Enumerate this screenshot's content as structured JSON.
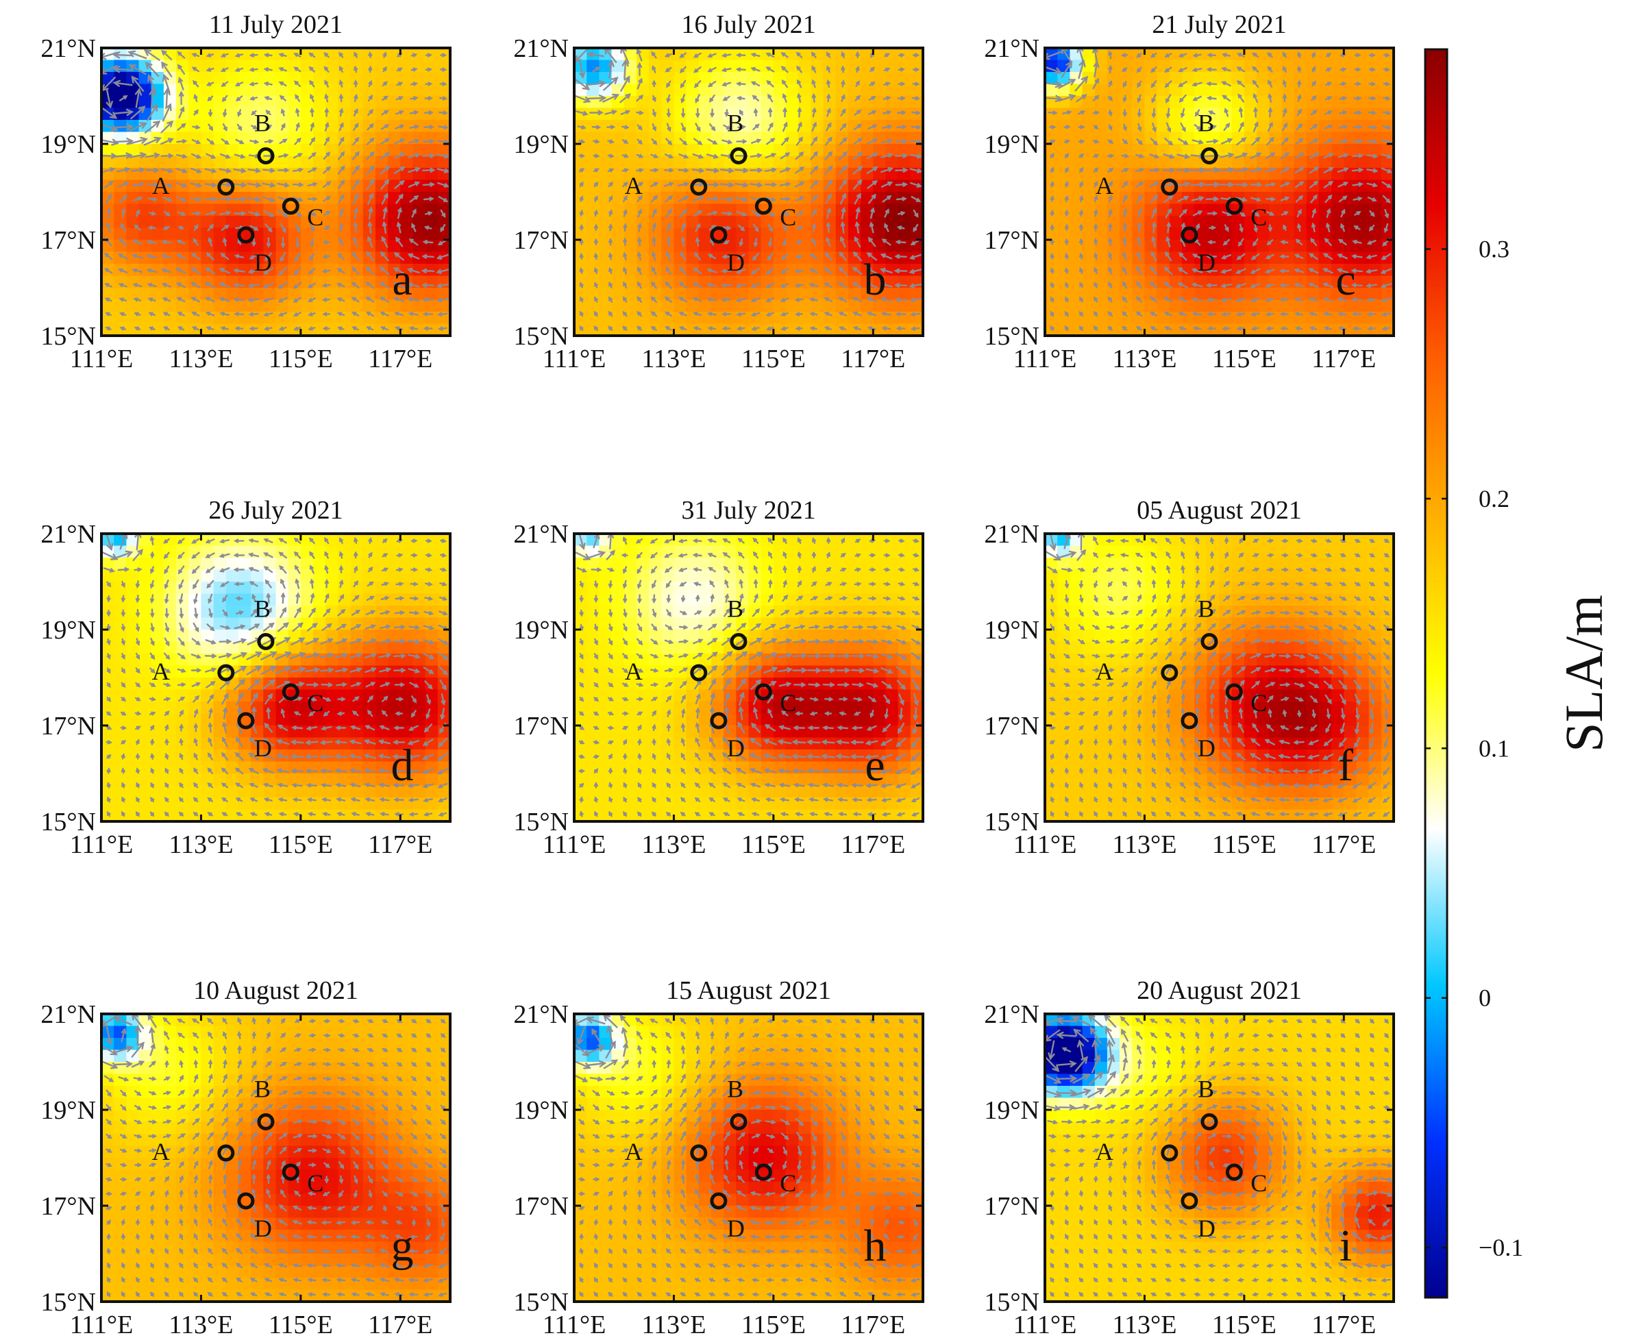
{
  "chart_data": {
    "type": "heatmap",
    "variable": "Sea level anomaly with surface current vectors",
    "colorbar": {
      "label": "SLA/m",
      "range": [
        -0.12,
        0.38
      ],
      "ticks": [
        -0.1,
        0,
        0.1,
        0.2,
        0.3
      ],
      "tick_labels": [
        "−0.1",
        "0",
        "0.1",
        "0.2",
        "0.3"
      ],
      "colors": [
        "#00008f",
        "#0030ff",
        "#00c8ff",
        "#ffffff",
        "#ffff00",
        "#ffb000",
        "#ff6000",
        "#e60000",
        "#8b0000"
      ]
    },
    "axes": {
      "xlim": [
        111,
        118
      ],
      "ylim": [
        15,
        21
      ],
      "xticks": [
        111,
        113,
        115,
        117
      ],
      "yticks": [
        15,
        17,
        19,
        21
      ],
      "xtick_labels": [
        "111°E",
        "113°E",
        "115°E",
        "117°E"
      ],
      "ytick_labels": [
        "15°N",
        "17°N",
        "19°N",
        "21°N"
      ]
    },
    "stations": [
      {
        "name": "A",
        "lon": 113.5,
        "lat": 18.1
      },
      {
        "name": "B",
        "lon": 114.3,
        "lat": 18.75
      },
      {
        "name": "C",
        "lon": 114.8,
        "lat": 17.7
      },
      {
        "name": "D",
        "lon": 113.9,
        "lat": 17.1
      }
    ],
    "panels": [
      {
        "letter": "a",
        "title": "11 July 2021",
        "base": 0.17,
        "features": [
          {
            "kind": "low",
            "lon": 111.4,
            "lat": 20.0,
            "amp": -0.34,
            "r": 0.6
          },
          {
            "kind": "low",
            "lon": 114.2,
            "lat": 19.4,
            "amp": -0.07,
            "r": 1.0
          },
          {
            "kind": "high",
            "lon": 113.9,
            "lat": 17.0,
            "amp": 0.14,
            "r": 0.9
          },
          {
            "kind": "high",
            "lon": 117.6,
            "lat": 17.4,
            "amp": 0.2,
            "r": 1.1
          },
          {
            "kind": "high",
            "lon": 111.8,
            "lat": 17.5,
            "amp": 0.1,
            "r": 0.8
          }
        ]
      },
      {
        "letter": "b",
        "title": "16 July 2021",
        "base": 0.18,
        "features": [
          {
            "kind": "low",
            "lon": 111.4,
            "lat": 20.6,
            "amp": -0.2,
            "r": 0.5
          },
          {
            "kind": "low",
            "lon": 114.3,
            "lat": 19.5,
            "amp": -0.1,
            "r": 1.0
          },
          {
            "kind": "high",
            "lon": 114.0,
            "lat": 17.1,
            "amp": 0.12,
            "r": 1.0
          },
          {
            "kind": "high",
            "lon": 117.6,
            "lat": 17.4,
            "amp": 0.2,
            "r": 1.1
          }
        ]
      },
      {
        "letter": "c",
        "title": "21 July 2021",
        "base": 0.2,
        "features": [
          {
            "kind": "low",
            "lon": 111.2,
            "lat": 20.7,
            "amp": -0.28,
            "r": 0.4
          },
          {
            "kind": "low",
            "lon": 114.3,
            "lat": 19.4,
            "amp": -0.1,
            "r": 0.8
          },
          {
            "kind": "high",
            "lon": 114.3,
            "lat": 17.2,
            "amp": 0.14,
            "r": 1.0
          },
          {
            "kind": "high",
            "lon": 117.4,
            "lat": 17.4,
            "amp": 0.16,
            "r": 1.1
          }
        ]
      },
      {
        "letter": "d",
        "title": "26 July 2021",
        "base": 0.15,
        "features": [
          {
            "kind": "low",
            "lon": 111.3,
            "lat": 20.9,
            "amp": -0.15,
            "r": 0.3
          },
          {
            "kind": "low",
            "lon": 113.8,
            "lat": 19.4,
            "amp": -0.13,
            "r": 1.0
          },
          {
            "kind": "high",
            "lon": 114.7,
            "lat": 17.4,
            "amp": 0.17,
            "r": 0.9
          },
          {
            "kind": "high",
            "lon": 117.1,
            "lat": 17.4,
            "amp": 0.19,
            "r": 1.1
          }
        ]
      },
      {
        "letter": "e",
        "title": "31 July 2021",
        "base": 0.15,
        "features": [
          {
            "kind": "low",
            "lon": 111.3,
            "lat": 20.9,
            "amp": -0.12,
            "r": 0.3
          },
          {
            "kind": "low",
            "lon": 113.4,
            "lat": 19.6,
            "amp": -0.08,
            "r": 1.0
          },
          {
            "kind": "high",
            "lon": 115.0,
            "lat": 17.4,
            "amp": 0.17,
            "r": 0.9
          },
          {
            "kind": "high",
            "lon": 117.0,
            "lat": 17.3,
            "amp": 0.18,
            "r": 1.0
          }
        ]
      },
      {
        "letter": "f",
        "title": "05 August 2021",
        "base": 0.17,
        "features": [
          {
            "kind": "low",
            "lon": 111.3,
            "lat": 20.9,
            "amp": -0.15,
            "r": 0.3
          },
          {
            "kind": "low",
            "lon": 112.5,
            "lat": 19.8,
            "amp": -0.06,
            "r": 1.0
          },
          {
            "kind": "high",
            "lon": 115.5,
            "lat": 17.4,
            "amp": 0.15,
            "r": 1.2
          },
          {
            "kind": "high",
            "lon": 116.8,
            "lat": 17.0,
            "amp": 0.08,
            "r": 1.0
          }
        ]
      },
      {
        "letter": "g",
        "title": "10 August 2021",
        "base": 0.18,
        "features": [
          {
            "kind": "low",
            "lon": 111.3,
            "lat": 20.6,
            "amp": -0.2,
            "r": 0.4
          },
          {
            "kind": "low",
            "lon": 112.3,
            "lat": 19.8,
            "amp": -0.06,
            "r": 1.0
          },
          {
            "kind": "high",
            "lon": 115.2,
            "lat": 17.6,
            "amp": 0.13,
            "r": 1.2
          },
          {
            "kind": "high",
            "lon": 117.5,
            "lat": 16.5,
            "amp": 0.08,
            "r": 0.9
          }
        ]
      },
      {
        "letter": "h",
        "title": "15 August 2021",
        "base": 0.18,
        "features": [
          {
            "kind": "low",
            "lon": 111.3,
            "lat": 20.5,
            "amp": -0.2,
            "r": 0.4
          },
          {
            "kind": "low",
            "lon": 112.3,
            "lat": 19.8,
            "amp": -0.06,
            "r": 1.0
          },
          {
            "kind": "high",
            "lon": 114.8,
            "lat": 18.0,
            "amp": 0.14,
            "r": 1.1
          },
          {
            "kind": "high",
            "lon": 117.6,
            "lat": 16.5,
            "amp": 0.08,
            "r": 0.9
          }
        ]
      },
      {
        "letter": "i",
        "title": "20 August 2021",
        "base": 0.16,
        "features": [
          {
            "kind": "low",
            "lon": 111.4,
            "lat": 20.2,
            "amp": -0.34,
            "r": 0.6
          },
          {
            "kind": "low",
            "lon": 113.0,
            "lat": 19.8,
            "amp": -0.04,
            "r": 0.8
          },
          {
            "kind": "high",
            "lon": 114.6,
            "lat": 18.0,
            "amp": 0.12,
            "r": 0.9
          },
          {
            "kind": "high",
            "lon": 117.7,
            "lat": 16.8,
            "amp": 0.14,
            "r": 0.7
          }
        ]
      }
    ]
  }
}
